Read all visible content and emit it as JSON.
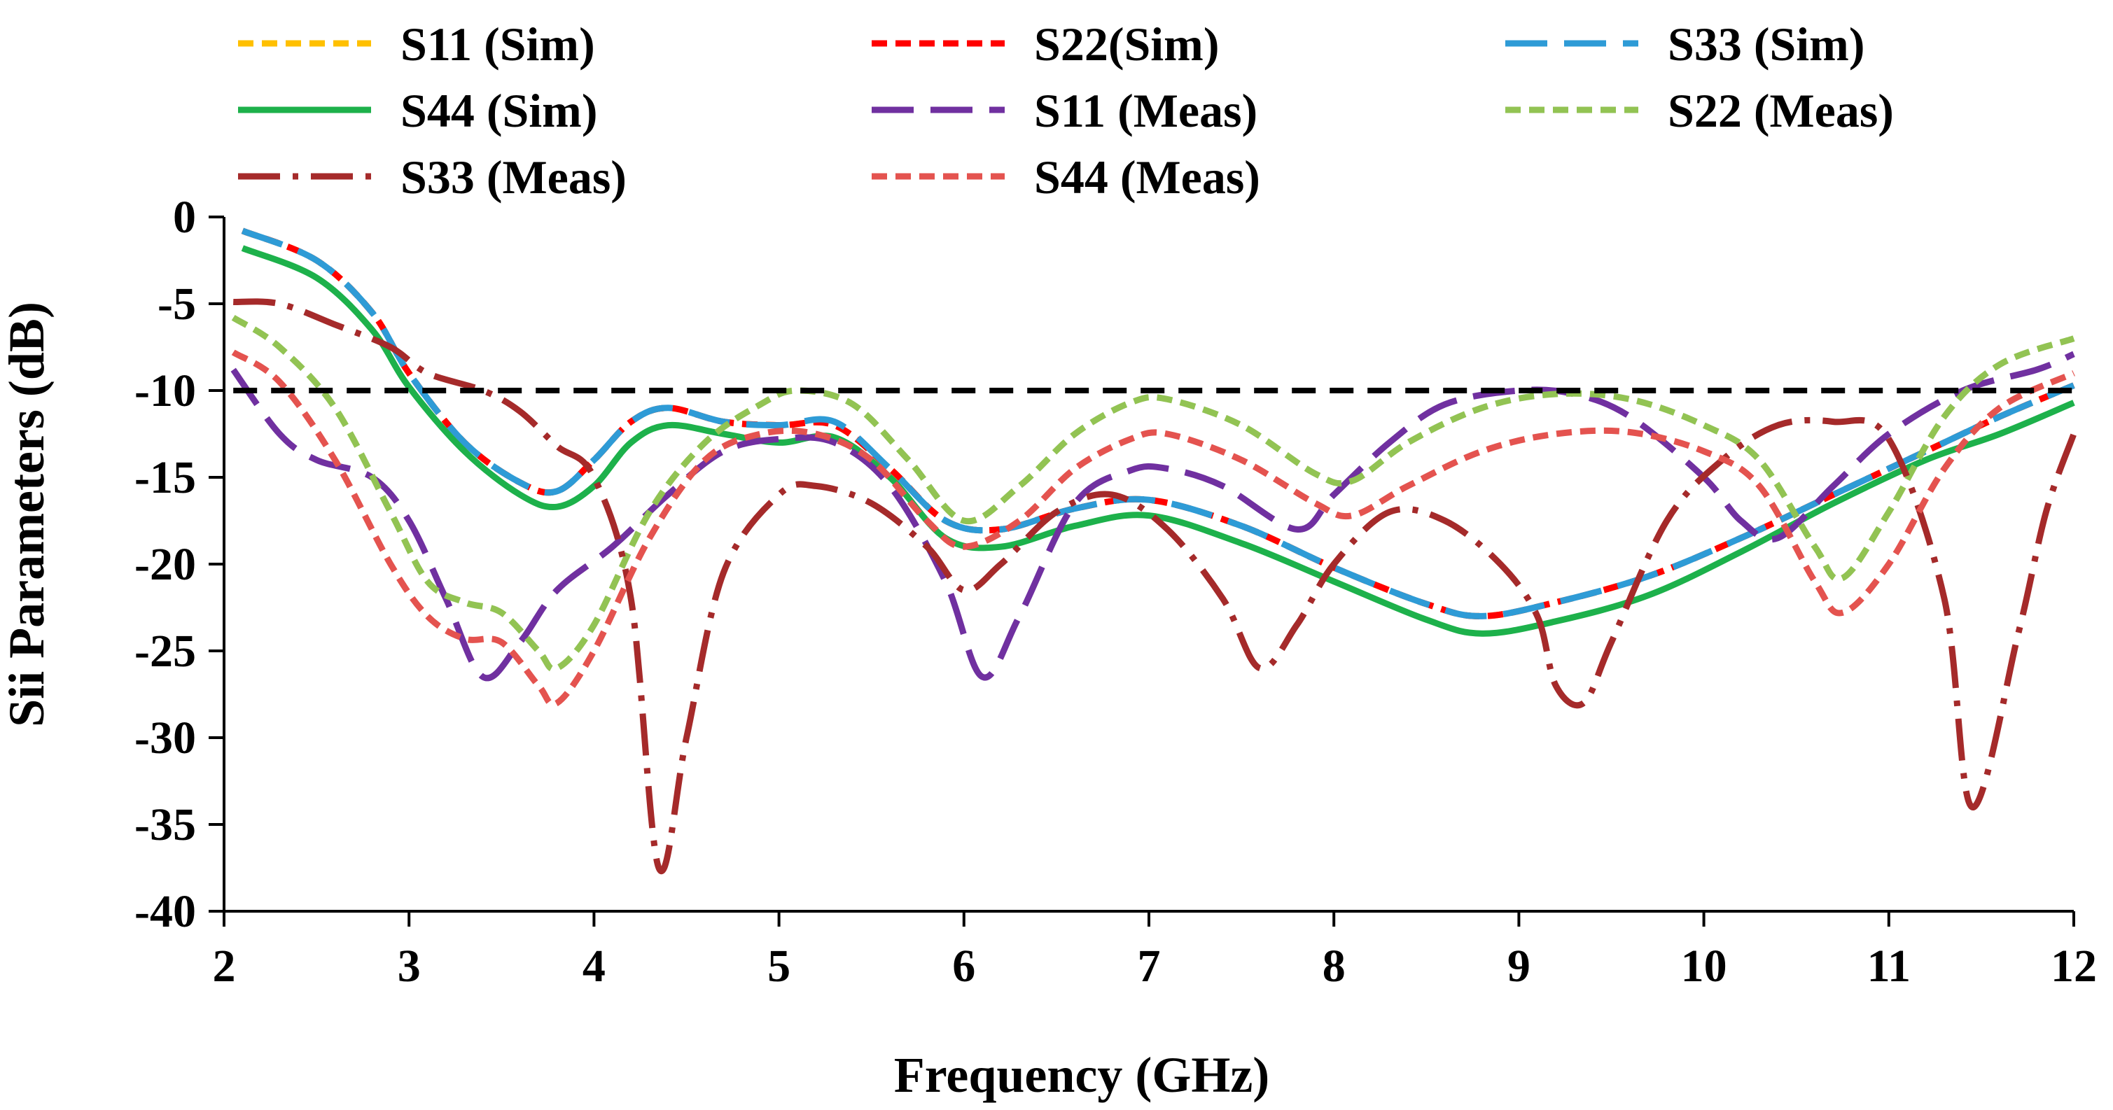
{
  "chart_data": {
    "type": "line",
    "xlabel": "Frequency (GHz)",
    "ylabel": "Sii Parameters (dB)",
    "xlim": [
      2,
      12
    ],
    "ylim": [
      -40,
      0
    ],
    "x_ticks": [
      2,
      3,
      4,
      5,
      6,
      7,
      8,
      9,
      10,
      11,
      12
    ],
    "y_ticks": [
      0,
      -5,
      -10,
      -15,
      -20,
      -25,
      -30,
      -35,
      -40
    ],
    "grid": false,
    "legend_position": "top",
    "reference_line": {
      "y": -10,
      "color": "#000000",
      "style": "dashed"
    },
    "series": [
      {
        "name": "S11 (Sim)",
        "color": "#FFC000",
        "dash": "short-dash",
        "points": [
          [
            2.1,
            -0.8
          ],
          [
            2.5,
            -2.5
          ],
          [
            2.8,
            -5.5
          ],
          [
            3.0,
            -9
          ],
          [
            3.3,
            -13
          ],
          [
            3.6,
            -15.3
          ],
          [
            3.8,
            -15.8
          ],
          [
            4.0,
            -14
          ],
          [
            4.2,
            -11.8
          ],
          [
            4.4,
            -11
          ],
          [
            4.7,
            -11.8
          ],
          [
            5.0,
            -12
          ],
          [
            5.3,
            -12
          ],
          [
            5.6,
            -14.5
          ],
          [
            5.9,
            -17.5
          ],
          [
            6.2,
            -18
          ],
          [
            6.6,
            -16.8
          ],
          [
            7.0,
            -16.3
          ],
          [
            7.5,
            -17.8
          ],
          [
            8.0,
            -20.2
          ],
          [
            8.5,
            -22.3
          ],
          [
            8.8,
            -23
          ],
          [
            9.2,
            -22.2
          ],
          [
            9.7,
            -20.7
          ],
          [
            10.2,
            -18.5
          ],
          [
            10.7,
            -16
          ],
          [
            11.2,
            -13.5
          ],
          [
            11.6,
            -11.5
          ],
          [
            12.0,
            -9.7
          ]
        ]
      },
      {
        "name": "S22(Sim)",
        "color": "#FF0000",
        "dash": "short-dash",
        "points": [
          [
            2.1,
            -0.8
          ],
          [
            2.5,
            -2.5
          ],
          [
            2.8,
            -5.5
          ],
          [
            3.0,
            -9
          ],
          [
            3.3,
            -13
          ],
          [
            3.6,
            -15.3
          ],
          [
            3.8,
            -15.8
          ],
          [
            4.0,
            -14
          ],
          [
            4.2,
            -11.8
          ],
          [
            4.4,
            -11
          ],
          [
            4.7,
            -11.8
          ],
          [
            5.0,
            -12
          ],
          [
            5.3,
            -12
          ],
          [
            5.6,
            -14.5
          ],
          [
            5.9,
            -17.5
          ],
          [
            6.2,
            -18
          ],
          [
            6.6,
            -16.8
          ],
          [
            7.0,
            -16.3
          ],
          [
            7.5,
            -17.8
          ],
          [
            8.0,
            -20.2
          ],
          [
            8.5,
            -22.3
          ],
          [
            8.8,
            -23
          ],
          [
            9.2,
            -22.2
          ],
          [
            9.7,
            -20.7
          ],
          [
            10.2,
            -18.5
          ],
          [
            10.7,
            -16
          ],
          [
            11.2,
            -13.5
          ],
          [
            11.6,
            -11.5
          ],
          [
            12.0,
            -9.7
          ]
        ]
      },
      {
        "name": "S33 (Sim)",
        "color": "#2E9BD6",
        "dash": "long-dash",
        "points": [
          [
            2.1,
            -0.8
          ],
          [
            2.5,
            -2.5
          ],
          [
            2.8,
            -5.5
          ],
          [
            3.0,
            -9
          ],
          [
            3.3,
            -13
          ],
          [
            3.6,
            -15.3
          ],
          [
            3.8,
            -15.8
          ],
          [
            4.0,
            -14
          ],
          [
            4.2,
            -11.8
          ],
          [
            4.4,
            -11
          ],
          [
            4.7,
            -11.8
          ],
          [
            5.0,
            -12
          ],
          [
            5.3,
            -11.8
          ],
          [
            5.6,
            -14.5
          ],
          [
            5.9,
            -17.5
          ],
          [
            6.2,
            -18
          ],
          [
            6.6,
            -16.8
          ],
          [
            7.0,
            -16.3
          ],
          [
            7.5,
            -17.8
          ],
          [
            8.0,
            -20.2
          ],
          [
            8.5,
            -22.3
          ],
          [
            8.8,
            -23
          ],
          [
            9.2,
            -22.2
          ],
          [
            9.7,
            -20.7
          ],
          [
            10.2,
            -18.5
          ],
          [
            10.7,
            -16
          ],
          [
            11.2,
            -13.5
          ],
          [
            11.6,
            -11.5
          ],
          [
            12.0,
            -9.7
          ]
        ]
      },
      {
        "name": "S44 (Sim)",
        "color": "#1DB14B",
        "dash": "solid",
        "points": [
          [
            2.1,
            -1.8
          ],
          [
            2.5,
            -3.5
          ],
          [
            2.8,
            -6.5
          ],
          [
            3.0,
            -9.8
          ],
          [
            3.3,
            -13.5
          ],
          [
            3.6,
            -16
          ],
          [
            3.8,
            -16.7
          ],
          [
            4.0,
            -15.5
          ],
          [
            4.2,
            -13
          ],
          [
            4.4,
            -12
          ],
          [
            4.7,
            -12.5
          ],
          [
            5.0,
            -13
          ],
          [
            5.3,
            -12.7
          ],
          [
            5.6,
            -15
          ],
          [
            5.9,
            -18.5
          ],
          [
            6.2,
            -19
          ],
          [
            6.6,
            -17.8
          ],
          [
            7.0,
            -17.2
          ],
          [
            7.5,
            -18.8
          ],
          [
            8.0,
            -21
          ],
          [
            8.5,
            -23.2
          ],
          [
            8.8,
            -24
          ],
          [
            9.2,
            -23.3
          ],
          [
            9.7,
            -21.8
          ],
          [
            10.2,
            -19.3
          ],
          [
            10.7,
            -16.5
          ],
          [
            11.2,
            -14
          ],
          [
            11.6,
            -12.5
          ],
          [
            12.0,
            -10.7
          ]
        ]
      },
      {
        "name": "S11 (Meas)",
        "color": "#7030A0",
        "dash": "long-dash",
        "points": [
          [
            2.05,
            -8.8
          ],
          [
            2.3,
            -12.5
          ],
          [
            2.5,
            -14
          ],
          [
            2.8,
            -15
          ],
          [
            3.0,
            -17.5
          ],
          [
            3.2,
            -22
          ],
          [
            3.4,
            -26.5
          ],
          [
            3.6,
            -24.5
          ],
          [
            3.8,
            -21.5
          ],
          [
            4.1,
            -19
          ],
          [
            4.4,
            -16
          ],
          [
            4.7,
            -13.5
          ],
          [
            5.0,
            -12.8
          ],
          [
            5.3,
            -13
          ],
          [
            5.6,
            -15.5
          ],
          [
            5.9,
            -21
          ],
          [
            6.1,
            -26.5
          ],
          [
            6.3,
            -23
          ],
          [
            6.6,
            -16.5
          ],
          [
            6.9,
            -14.6
          ],
          [
            7.1,
            -14.5
          ],
          [
            7.4,
            -15.5
          ],
          [
            7.8,
            -18
          ],
          [
            8.0,
            -16
          ],
          [
            8.3,
            -13
          ],
          [
            8.6,
            -10.8
          ],
          [
            9.0,
            -10
          ],
          [
            9.3,
            -10.2
          ],
          [
            9.6,
            -11.5
          ],
          [
            10.0,
            -15
          ],
          [
            10.2,
            -17.5
          ],
          [
            10.4,
            -18.5
          ],
          [
            10.7,
            -15.5
          ],
          [
            11.0,
            -12.5
          ],
          [
            11.4,
            -10
          ],
          [
            11.8,
            -8.8
          ],
          [
            12.0,
            -7.9
          ]
        ]
      },
      {
        "name": "S22 (Meas)",
        "color": "#92C353",
        "dash": "short-dash",
        "points": [
          [
            2.05,
            -5.8
          ],
          [
            2.3,
            -7.5
          ],
          [
            2.6,
            -11
          ],
          [
            2.9,
            -17
          ],
          [
            3.1,
            -21
          ],
          [
            3.3,
            -22.2
          ],
          [
            3.5,
            -22.8
          ],
          [
            3.7,
            -25
          ],
          [
            3.8,
            -26
          ],
          [
            4.0,
            -23.5
          ],
          [
            4.3,
            -17
          ],
          [
            4.6,
            -13
          ],
          [
            4.9,
            -10.8
          ],
          [
            5.1,
            -10
          ],
          [
            5.4,
            -10.8
          ],
          [
            5.7,
            -14
          ],
          [
            6.0,
            -17.5
          ],
          [
            6.3,
            -15.5
          ],
          [
            6.6,
            -12.5
          ],
          [
            6.9,
            -10.7
          ],
          [
            7.1,
            -10.5
          ],
          [
            7.5,
            -12
          ],
          [
            7.9,
            -14.8
          ],
          [
            8.1,
            -15.2
          ],
          [
            8.4,
            -13
          ],
          [
            8.8,
            -11
          ],
          [
            9.2,
            -10.2
          ],
          [
            9.6,
            -10.5
          ],
          [
            10.0,
            -12
          ],
          [
            10.3,
            -14
          ],
          [
            10.6,
            -19
          ],
          [
            10.75,
            -20.8
          ],
          [
            11.0,
            -17
          ],
          [
            11.3,
            -11.5
          ],
          [
            11.6,
            -8.5
          ],
          [
            12.0,
            -7
          ]
        ]
      },
      {
        "name": "S33 (Meas)",
        "color": "#A52A2A",
        "dash": "dash-dot",
        "points": [
          [
            2.05,
            -4.9
          ],
          [
            2.3,
            -5
          ],
          [
            2.6,
            -6.2
          ],
          [
            2.9,
            -7.5
          ],
          [
            3.1,
            -9
          ],
          [
            3.4,
            -10
          ],
          [
            3.6,
            -11.2
          ],
          [
            3.8,
            -13.2
          ],
          [
            4.0,
            -15
          ],
          [
            4.2,
            -22
          ],
          [
            4.35,
            -37.5
          ],
          [
            4.5,
            -30
          ],
          [
            4.7,
            -20.5
          ],
          [
            5.0,
            -16
          ],
          [
            5.2,
            -15.5
          ],
          [
            5.5,
            -16.5
          ],
          [
            5.8,
            -19
          ],
          [
            6.0,
            -21.5
          ],
          [
            6.2,
            -20
          ],
          [
            6.5,
            -17
          ],
          [
            6.8,
            -16
          ],
          [
            7.1,
            -18
          ],
          [
            7.4,
            -22
          ],
          [
            7.6,
            -26
          ],
          [
            7.8,
            -23.5
          ],
          [
            8.0,
            -20
          ],
          [
            8.3,
            -17
          ],
          [
            8.6,
            -17.5
          ],
          [
            8.9,
            -20
          ],
          [
            9.1,
            -23
          ],
          [
            9.2,
            -27
          ],
          [
            9.35,
            -28
          ],
          [
            9.5,
            -24.5
          ],
          [
            9.8,
            -17.5
          ],
          [
            10.1,
            -14
          ],
          [
            10.4,
            -12
          ],
          [
            10.7,
            -11.8
          ],
          [
            11.0,
            -12.8
          ],
          [
            11.3,
            -22
          ],
          [
            11.45,
            -34
          ],
          [
            11.7,
            -24
          ],
          [
            11.85,
            -17
          ],
          [
            12.0,
            -12.5
          ]
        ]
      },
      {
        "name": "S44 (Meas)",
        "color": "#E4534F",
        "dash": "short-dash",
        "points": [
          [
            2.05,
            -7.8
          ],
          [
            2.3,
            -9.5
          ],
          [
            2.6,
            -14
          ],
          [
            2.9,
            -20
          ],
          [
            3.1,
            -23
          ],
          [
            3.3,
            -24.3
          ],
          [
            3.5,
            -24.5
          ],
          [
            3.7,
            -27
          ],
          [
            3.8,
            -28
          ],
          [
            4.0,
            -25
          ],
          [
            4.3,
            -18.5
          ],
          [
            4.6,
            -14
          ],
          [
            4.9,
            -12.5
          ],
          [
            5.2,
            -12.5
          ],
          [
            5.5,
            -14
          ],
          [
            5.8,
            -17.5
          ],
          [
            6.0,
            -19
          ],
          [
            6.3,
            -17.5
          ],
          [
            6.6,
            -14.5
          ],
          [
            6.9,
            -12.8
          ],
          [
            7.1,
            -12.5
          ],
          [
            7.5,
            -14
          ],
          [
            7.9,
            -16.5
          ],
          [
            8.1,
            -17.2
          ],
          [
            8.4,
            -15.5
          ],
          [
            8.8,
            -13.5
          ],
          [
            9.2,
            -12.5
          ],
          [
            9.6,
            -12.4
          ],
          [
            10.0,
            -13.5
          ],
          [
            10.3,
            -15.5
          ],
          [
            10.6,
            -21
          ],
          [
            10.75,
            -22.8
          ],
          [
            11.0,
            -20
          ],
          [
            11.3,
            -14.5
          ],
          [
            11.6,
            -11
          ],
          [
            12.0,
            -9
          ]
        ]
      }
    ]
  }
}
